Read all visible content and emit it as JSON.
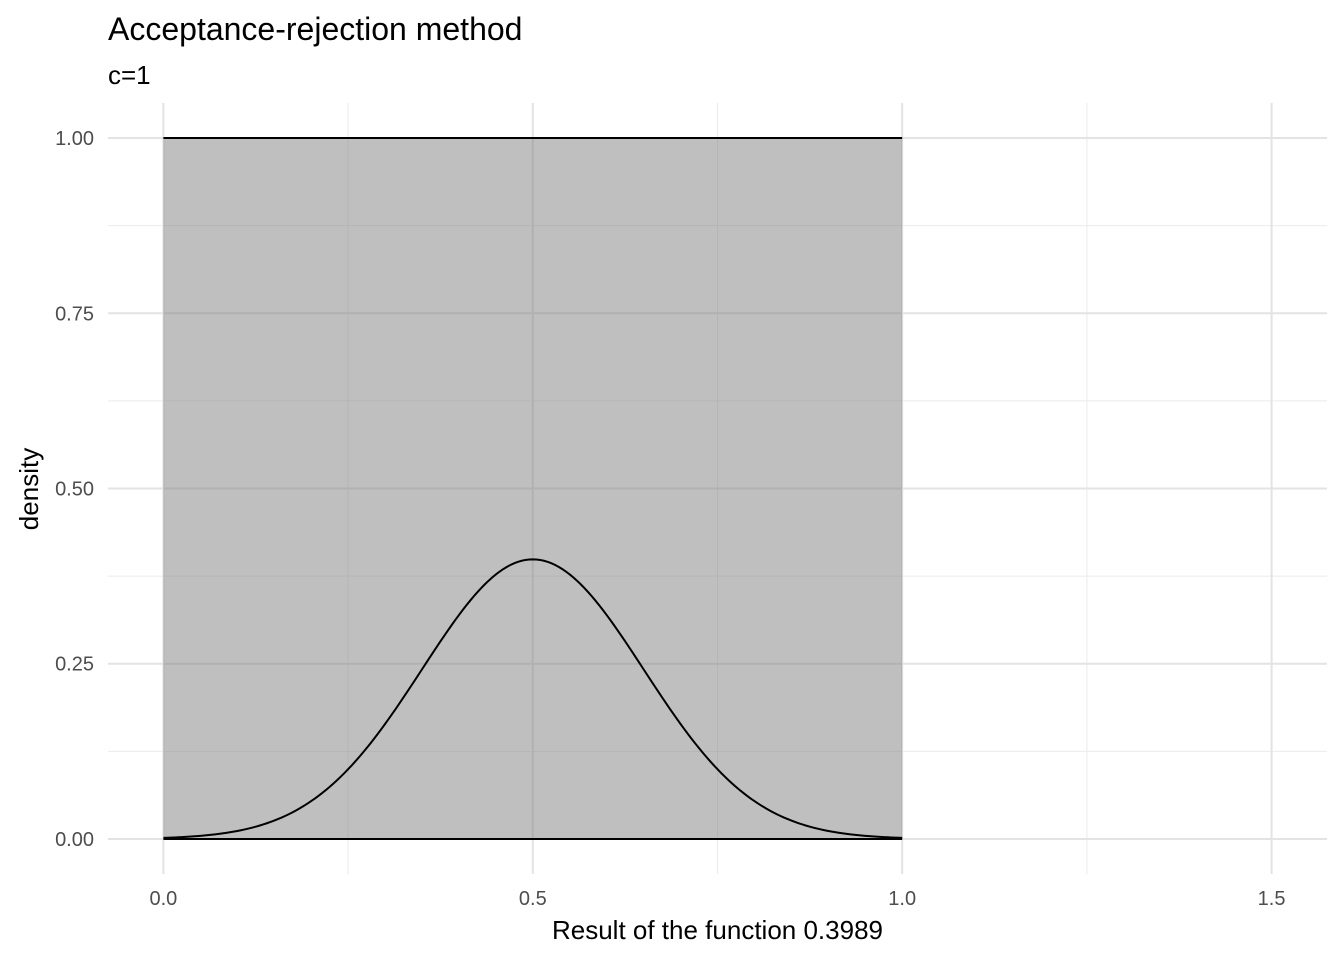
{
  "chart_data": {
    "type": "area",
    "title": "Acceptance-rejection method",
    "subtitle": "c=1",
    "xlabel": "Result of the function 0.3989",
    "ylabel": "density",
    "xlim": [
      -0.075,
      1.575
    ],
    "ylim": [
      -0.05,
      1.05
    ],
    "x_ticks": [
      0.0,
      0.5,
      1.0,
      1.5
    ],
    "x_tick_labels": [
      "0.0",
      "0.5",
      "1.0",
      "1.5"
    ],
    "y_ticks": [
      0.0,
      0.25,
      0.5,
      0.75,
      1.0
    ],
    "y_tick_labels": [
      "0.00",
      "0.25",
      "0.50",
      "0.75",
      "1.00"
    ],
    "grid": true,
    "series": [
      {
        "kind": "uniform-envelope",
        "x_range": [
          0.0,
          1.0
        ],
        "height": 1.0,
        "fill_color": "#808080",
        "fill_opacity": 0.5,
        "line_color": "#000000"
      },
      {
        "kind": "curve",
        "distribution": "normal",
        "mean": 0.5,
        "sd": 0.15,
        "scale": 0.15,
        "x_range": [
          0.0,
          1.0
        ],
        "line_color": "#000000"
      }
    ]
  }
}
